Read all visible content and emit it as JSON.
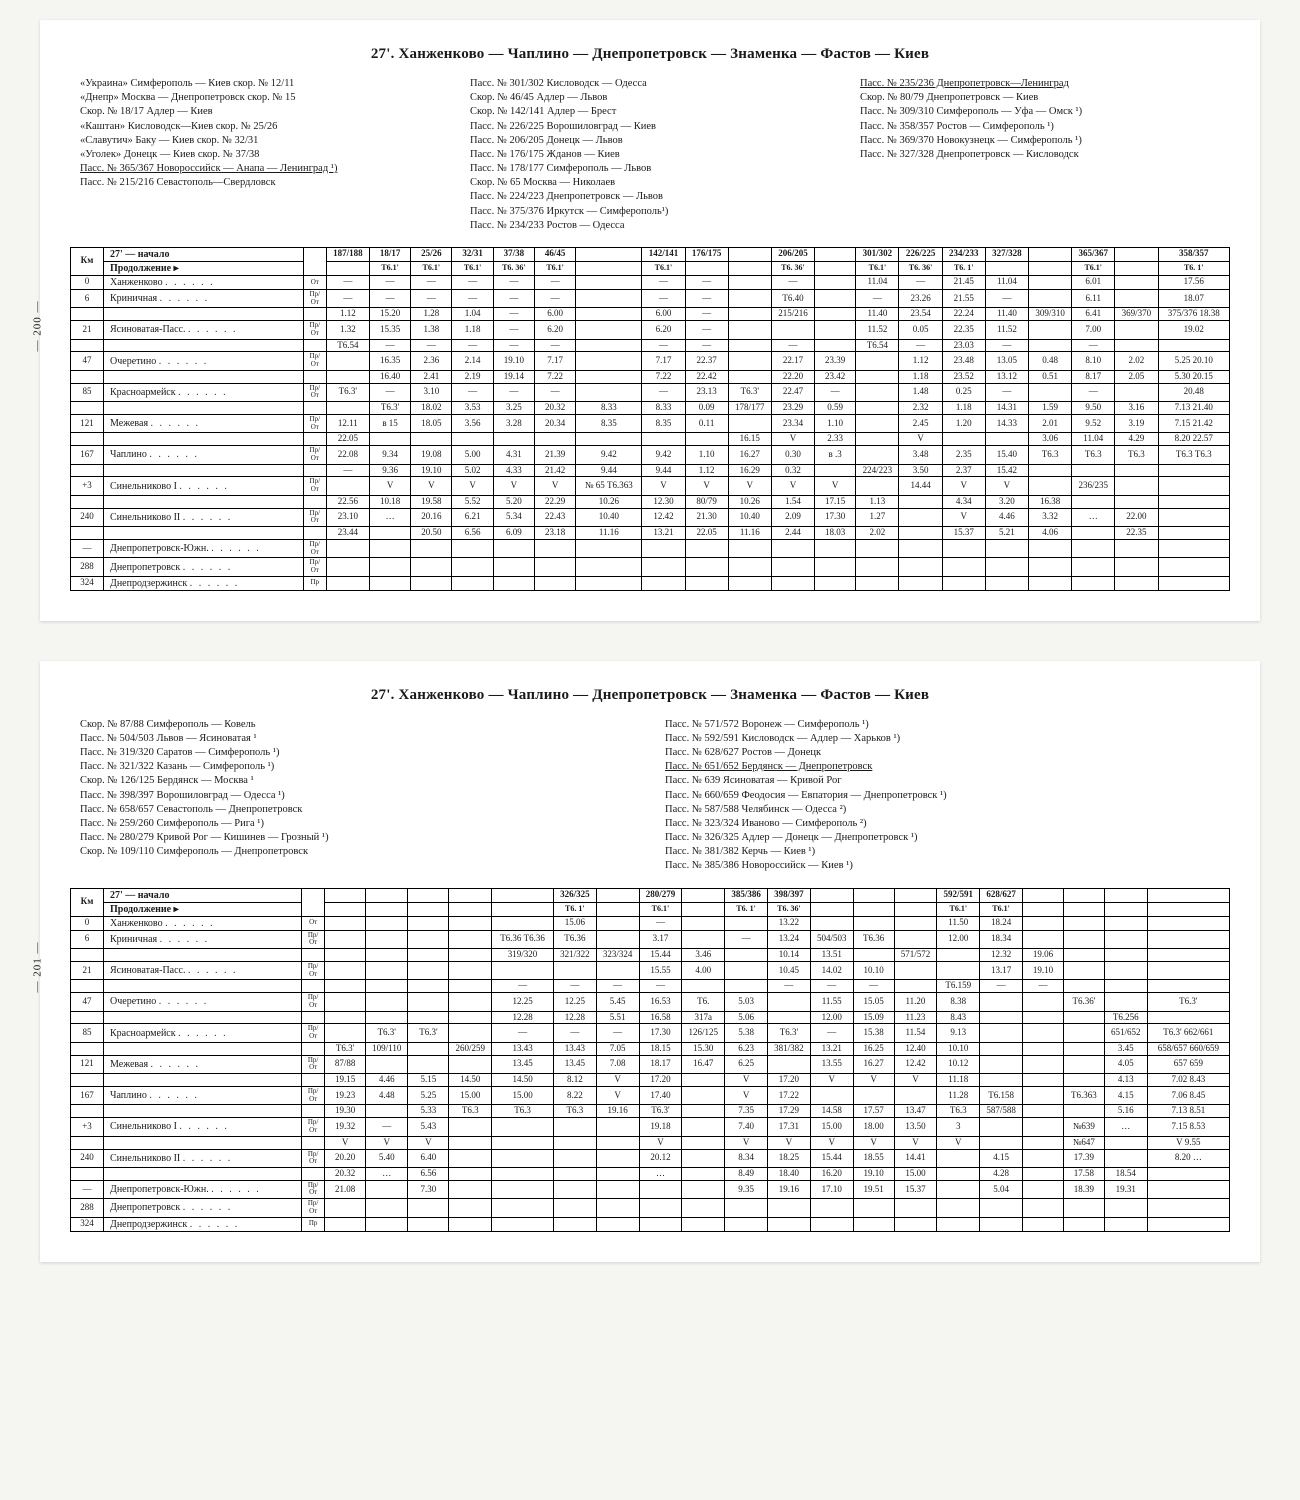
{
  "title": "27'. Ханженково — Чаплино — Днепропетровск — Знаменка — Фастов — Киев",
  "page_labels": {
    "p1": "— 200 —",
    "p2": "— 201 —"
  },
  "routes_top": {
    "col1": [
      "«Украина» Симферополь — Киев скор. № 12/11",
      "«Днепр» Москва — Днепропетровск скор. № 15",
      "Скор. № 18/17 Адлер — Киев",
      "«Каштан» Кисловодск—Киев скор. № 25/26",
      "«Славутич» Баку — Киев скор. № 32/31",
      "«Уголек» Донецк — Киев скор. № 37/38",
      "Пасс. № 365/367 Новороссийск — Анапа — Ленинград ¹)",
      "Пасс. № 215/216 Севастополь—Свердловск"
    ],
    "col2": [
      "Пасс. № 301/302 Кисловодск — Одесса",
      "Скор. № 46/45 Адлер — Львов",
      "Скор. № 142/141 Адлер — Брест",
      "Пасс. № 226/225 Ворошиловград — Киев",
      "Пасс. № 206/205 Донецк — Львов",
      "Пасс. № 176/175 Жданов — Киев",
      "Пасс. № 178/177 Симферополь — Львов",
      "Скор. № 65 Москва — Николаев",
      "Пасс. № 224/223 Днепропетровск — Львов",
      "Пасс. № 375/376 Иркутск — Симферополь¹)",
      "Пасс. № 234/233 Ростов — Одесса"
    ],
    "col3": [
      "Пасс. № 235/236 Днепропетровск—Ленинград",
      "Скор. № 80/79 Днепропетровск — Киев",
      "Пасс. № 309/310 Симферополь — Уфа — Омск ¹)",
      "Пасс. № 358/357 Ростов — Симферополь ¹)",
      "Пасс. № 369/370 Новокузнецк — Симферополь ¹)",
      "Пасс. № 327/328 Днепропетровск — Кисловодск"
    ]
  },
  "routes_bottom": {
    "col1": [
      "Скор. № 87/88 Симферополь — Ковель",
      "Пасс. № 504/503 Львов — Ясиноватая ¹",
      "Пасс. № 319/320 Саратов — Симферополь ¹)",
      "Пасс. № 321/322 Казань — Симферополь ¹)",
      "Скор. № 126/125 Бердянск — Москва ¹",
      "Пасс. № 398/397 Ворошиловград — Одесса ¹)",
      "Пасс. № 658/657 Севастополь — Днепропетровск",
      "Пасс. № 259/260 Симферополь — Рига ¹)",
      "Пасс. № 280/279 Кривой Рог — Кишинев — Грозный ¹)",
      "Скор. № 109/110 Симферополь — Днепропетровск"
    ],
    "col2": [
      "Пасс. № 571/572 Воронеж — Симферополь ¹)",
      "Пасс. № 592/591 Кисловодск — Адлер — Харьков ¹)",
      "Пасс. № 628/627 Ростов — Донецк",
      "Пасс. № 651/652 Бердянск — Днепропетровск",
      "Пасс. № 639 Ясиноватая — Кривой Рог",
      "Пасс. № 660/659 Феодосия — Евпатория — Днепропетровск ¹)",
      "Пасс. № 587/588 Челябинск — Одесса ²)",
      "Пасс. № 323/324 Иваново — Симферополь ²)",
      "Пасс. № 326/325 Адлер — Донецк — Днепропетровск ¹)",
      "Пасс. № 381/382 Керчь — Киев ¹)",
      "Пасс. № 385/386 Новороссийск — Киев ¹)"
    ]
  },
  "header_labels": {
    "km": "Км",
    "route": "27' — начало",
    "cont": "Продолжение ▸"
  },
  "train_nums_top": [
    "187/188",
    "18/17",
    "25/26",
    "32/31",
    "37/38",
    "46/45",
    "",
    "142/141",
    "176/175",
    "",
    "206/205",
    "",
    "301/302",
    "226/225",
    "234/233",
    "327/328",
    "",
    "365/367",
    "",
    "358/357"
  ],
  "train_sub_top": [
    "",
    "Т6.1'",
    "Т6.1'",
    "Т6.1'",
    "Т6. 36'",
    "Т6.1'",
    "",
    "Т6.1'",
    "",
    "",
    "Т6. 36'",
    "",
    "Т6.1'",
    "Т6. 36'",
    "Т6. 1'",
    "",
    "",
    "Т6.1'",
    "",
    "Т6. 1'"
  ],
  "train_nums_bot": [
    "",
    "",
    "",
    "",
    "",
    "326/325",
    "",
    "280/279",
    "",
    "385/386",
    "398/397",
    "",
    "",
    "",
    "592/591",
    "628/627",
    "",
    "",
    "",
    ""
  ],
  "train_sub_bot": [
    "",
    "",
    "",
    "",
    "",
    "Т6. 1'",
    "",
    "Т6.1'",
    "",
    "Т6. 1'",
    "Т6. 36'",
    "",
    "",
    "",
    "Т6.1'",
    "Т6.1'",
    "",
    "",
    "",
    ""
  ],
  "stations": [
    {
      "km": "0",
      "name": "Ханженково",
      "ar": "От"
    },
    {
      "km": "6",
      "name": "Криничная",
      "ar": "Пр/От"
    },
    {
      "km": "21",
      "name": "Ясиноватая-Пасс.",
      "ar": "Пр/От"
    },
    {
      "km": "47",
      "name": "Очеретино",
      "ar": "Пр/От"
    },
    {
      "km": "85",
      "name": "Красноармейск",
      "ar": "Пр/От"
    },
    {
      "km": "121",
      "name": "Межевая",
      "ar": "Пр/От"
    },
    {
      "km": "167",
      "name": "Чаплино",
      "ar": "Пр/От"
    },
    {
      "km": "+3",
      "name": "Синельниково I",
      "ar": "Пр/От"
    },
    {
      "km": "240",
      "name": "Синельниково II",
      "ar": "Пр/От"
    },
    {
      "km": "—",
      "name": "Днепропетровск-Южн.",
      "ar": "Пр/От"
    },
    {
      "km": "288",
      "name": "Днепропетровск",
      "ar": "Пр/От"
    },
    {
      "km": "324",
      "name": "Днепродзержинск",
      "ar": "Пр"
    }
  ],
  "cells_top": [
    [
      "—",
      "—",
      "—",
      "—",
      "—",
      "—",
      "",
      "—",
      "—",
      "",
      "—",
      "",
      "11.04",
      "—",
      "21.45",
      "11.04",
      "",
      "6.01",
      "",
      "17.56"
    ],
    [
      "—",
      "—",
      "—",
      "—",
      "—",
      "—",
      "",
      "—",
      "—",
      "",
      "Т6.40",
      "",
      "—",
      "23.26",
      "21.55",
      "—",
      "",
      "6.11",
      "",
      "18.07"
    ],
    [
      "1.12",
      "15.20",
      "1.28",
      "1.04",
      "—",
      "6.00",
      "",
      "6.00",
      "—",
      "",
      "215/216",
      "",
      "11.40",
      "23.54",
      "22.24",
      "11.40",
      "309/310",
      "6.41",
      "369/370",
      "375/376 18.38"
    ],
    [
      "1.32",
      "15.35",
      "1.38",
      "1.18",
      "—",
      "6.20",
      "",
      "6.20",
      "—",
      "",
      "",
      "",
      "11.52",
      "0.05",
      "22.35",
      "11.52",
      "",
      "7.00",
      "",
      "19.02"
    ],
    [
      "Т6.54",
      "—",
      "—",
      "—",
      "—",
      "—",
      "",
      "—",
      "—",
      "",
      "—",
      "",
      "Т6.54",
      "—",
      "23.03",
      "—",
      "",
      "—",
      "",
      ""
    ],
    [
      "",
      "16.35",
      "2.36",
      "2.14",
      "19.10",
      "7.17",
      "",
      "7.17",
      "22.37",
      "",
      "22.17",
      "23.39",
      "",
      "1.12",
      "23.48",
      "13.05",
      "0.48",
      "8.10",
      "2.02",
      "5.25 20.10"
    ],
    [
      "",
      "16.40",
      "2.41",
      "2.19",
      "19.14",
      "7.22",
      "",
      "7.22",
      "22.42",
      "",
      "22.20",
      "23.42",
      "",
      "1.18",
      "23.52",
      "13.12",
      "0.51",
      "8.17",
      "2.05",
      "5.30 20.15"
    ],
    [
      "Т6.3'",
      "—",
      "3.10",
      "—",
      "—",
      "—",
      "",
      "—",
      "23.13",
      "Т6.3'",
      "22.47",
      "—",
      "",
      "1.48",
      "0.25",
      "—",
      "",
      "—",
      "",
      "20.48"
    ],
    [
      "",
      "Т6.3'",
      "18.02",
      "3.53",
      "3.25",
      "20.32",
      "8.33",
      "8.33",
      "0.09",
      "178/177",
      "23.29",
      "0.59",
      "",
      "2.32",
      "1.18",
      "14.31",
      "1.59",
      "9.50",
      "3.16",
      "7.13 21.40"
    ],
    [
      "12.11",
      "в 15",
      "18.05",
      "3.56",
      "3.28",
      "20.34",
      "8.35",
      "8.35",
      "0.11",
      "",
      "23.34",
      "1.10",
      "",
      "2.45",
      "1.20",
      "14.33",
      "2.01",
      "9.52",
      "3.19",
      "7.15 21.42"
    ],
    [
      "22.05",
      "",
      "",
      "",
      "",
      "",
      "",
      "",
      "",
      "16.15",
      "V",
      "2.33",
      "",
      "V",
      "",
      "",
      "3.06",
      "11.04",
      "4.29",
      "8.20 22.57"
    ],
    [
      "22.08",
      "9.34",
      "19.08",
      "5.00",
      "4.31",
      "21.39",
      "9.42",
      "9.42",
      "1.10",
      "16.27",
      "0.30",
      "в .3",
      "",
      "3.48",
      "2.35",
      "15.40",
      "Т6.3",
      "Т6.3",
      "Т6.3",
      "Т6.3 Т6.3"
    ],
    [
      "—",
      "9.36",
      "19.10",
      "5.02",
      "4.33",
      "21.42",
      "9.44",
      "9.44",
      "1.12",
      "16.29",
      "0.32",
      "",
      "224/223",
      "3.50",
      "2.37",
      "15.42",
      "",
      "",
      "",
      ""
    ],
    [
      "",
      "V",
      "V",
      "V",
      "V",
      "V",
      "№ 65 Т6.363",
      "V",
      "V",
      "V",
      "V",
      "V",
      "",
      "14.44",
      "V",
      "V",
      "",
      "236/235",
      "",
      ""
    ],
    [
      "22.56",
      "10.18",
      "19.58",
      "5.52",
      "5.20",
      "22.29",
      "10.26",
      "12.30",
      "80/79",
      "10.26",
      "1.54",
      "17.15",
      "1.13",
      "",
      "4.34",
      "3.20",
      "16.38",
      "",
      "",
      ""
    ],
    [
      "23.10",
      "…",
      "20.16",
      "6.21",
      "5.34",
      "22.43",
      "10.40",
      "12.42",
      "21.30",
      "10.40",
      "2.09",
      "17.30",
      "1.27",
      "",
      "V",
      "4.46",
      "3.32",
      "…",
      "22.00",
      ""
    ],
    [
      "23.44",
      "",
      "20.50",
      "6.56",
      "6.09",
      "23.18",
      "11.16",
      "13.21",
      "22.05",
      "11.16",
      "2.44",
      "18.03",
      "2.02",
      "",
      "15.37",
      "5.21",
      "4.06",
      "",
      "22.35",
      ""
    ]
  ],
  "cells_bot": [
    [
      "",
      "",
      "",
      "",
      "",
      "15.06",
      "",
      "—",
      "",
      "",
      "13.22",
      "",
      "",
      "",
      "11.50",
      "18.24",
      "",
      "",
      "",
      ""
    ],
    [
      "",
      "",
      "",
      "",
      "Т6.36 Т6.36",
      "Т6.36",
      "",
      "3.17",
      "",
      "—",
      "13.24",
      "504/503",
      "Т6.36",
      "",
      "12.00",
      "18.34",
      "",
      "",
      "",
      ""
    ],
    [
      "",
      "",
      "",
      "",
      "319/320",
      "321/322",
      "323/324",
      "15.44",
      "3.46",
      "",
      "10.14",
      "13.51",
      "",
      "571/572",
      "",
      "12.32",
      "19.06",
      "",
      "",
      ""
    ],
    [
      "",
      "",
      "",
      "",
      "",
      "",
      "",
      "15.55",
      "4.00",
      "",
      "10.45",
      "14.02",
      "10.10",
      "",
      "",
      "13.17",
      "19.10",
      "",
      "",
      ""
    ],
    [
      "",
      "",
      "",
      "",
      "—",
      "—",
      "—",
      "—",
      "",
      "",
      "—",
      "—",
      "—",
      "",
      "Т6.159",
      "—",
      "—",
      "",
      "",
      ""
    ],
    [
      "",
      "",
      "",
      "",
      "12.25",
      "12.25",
      "5.45",
      "16.53",
      "Т6.",
      "5.03",
      "",
      "11.55",
      "15.05",
      "11.20",
      "8.38",
      "",
      "",
      "Т6.36'",
      "",
      "Т6.3'"
    ],
    [
      "",
      "",
      "",
      "",
      "12.28",
      "12.28",
      "5.51",
      "16.58",
      "317а",
      "5.06",
      "",
      "12.00",
      "15.09",
      "11.23",
      "8.43",
      "",
      "",
      "",
      "Т6.256",
      ""
    ],
    [
      "",
      "Т6.3'",
      "Т6.3'",
      "",
      "—",
      "—",
      "—",
      "17.30",
      "126/125",
      "5.38",
      "Т6.3'",
      "—",
      "15.38",
      "11.54",
      "9.13",
      "",
      "",
      "",
      "651/652",
      "Т6.3' 662/661"
    ],
    [
      "Т6.3'",
      "109/110",
      "",
      "260/259",
      "13.43",
      "13.43",
      "7.05",
      "18.15",
      "15.30",
      "6.23",
      "381/382",
      "13.21",
      "16.25",
      "12.40",
      "10.10",
      "",
      "",
      "",
      "3.45",
      "658/657 660/659"
    ],
    [
      "87/88",
      "",
      "",
      "",
      "13.45",
      "13.45",
      "7.08",
      "18.17",
      "16.47",
      "6.25",
      "",
      "13.55",
      "16.27",
      "12.42",
      "10.12",
      "",
      "",
      "",
      "4.05",
      "657 659"
    ],
    [
      "19.15",
      "4.46",
      "5.15",
      "14.50",
      "14.50",
      "8.12",
      "V",
      "17.20",
      "",
      "V",
      "17.20",
      "V",
      "V",
      "V",
      "11.18",
      "",
      "",
      "",
      "4.13",
      "7.02 8.43"
    ],
    [
      "19.23",
      "4.48",
      "5.25",
      "15.00",
      "15.00",
      "8.22",
      "V",
      "17.40",
      "",
      "V",
      "17.22",
      "",
      "",
      "",
      "11.28",
      "Т6.158",
      "",
      "Т6.363",
      "4.15",
      "7.06 8.45"
    ],
    [
      "19.30",
      "",
      "5.33",
      "Т6.3",
      "Т6.3",
      "Т6.3",
      "19.16",
      "Т6.3'",
      "",
      "7.35",
      "17.29",
      "14.58",
      "17.57",
      "13.47",
      "Т6.3",
      "587/588",
      "",
      "",
      "5.16",
      "7.13 8.51"
    ],
    [
      "19.32",
      "—",
      "5.43",
      "",
      "",
      "",
      "",
      "19.18",
      "",
      "7.40",
      "17.31",
      "15.00",
      "18.00",
      "13.50",
      "3",
      "",
      "",
      "№639",
      "…",
      "7.15 8.53"
    ],
    [
      "V",
      "V",
      "V",
      "",
      "",
      "",
      "",
      "V",
      "",
      "V",
      "V",
      "V",
      "V",
      "V",
      "V",
      "",
      "",
      "№647",
      "",
      "V 9.55"
    ],
    [
      "20.20",
      "5.40",
      "6.40",
      "",
      "",
      "",
      "",
      "20.12",
      "",
      "8.34",
      "18.25",
      "15.44",
      "18.55",
      "14.41",
      "",
      "4.15",
      "",
      "17.39",
      "",
      "8.20 …"
    ],
    [
      "20.32",
      "…",
      "6.56",
      "",
      "",
      "",
      "",
      "…",
      "",
      "8.49",
      "18.40",
      "16.20",
      "19.10",
      "15.00",
      "",
      "4.28",
      "",
      "17.58",
      "18.54",
      ""
    ],
    [
      "21.08",
      "",
      "7.30",
      "",
      "",
      "",
      "",
      "",
      "",
      "9.35",
      "19.16",
      "17.10",
      "19.51",
      "15.37",
      "",
      "5.04",
      "",
      "18.39",
      "19.31",
      ""
    ]
  ]
}
